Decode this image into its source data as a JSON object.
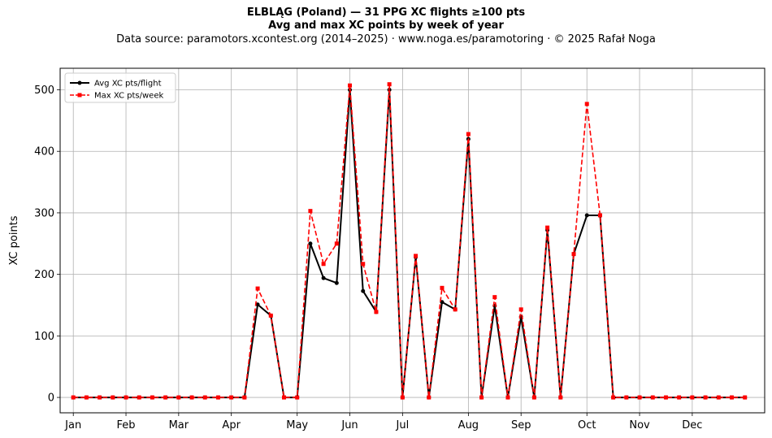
{
  "header": {
    "title": "ELBLĄG (Poland)  —  31 PPG XC flights ≥100 pts",
    "subtitle": "Avg and max XC points by week of year",
    "source": "Data source: paramotors.xcontest.org (2014–2025)  ·  www.noga.es/paramotoring  ·  © 2025 Rafał Noga"
  },
  "chart_data": {
    "type": "line",
    "ylabel": "XC points",
    "x_ticks": [
      {
        "week": 1,
        "label": "Jan"
      },
      {
        "week": 5,
        "label": "Feb"
      },
      {
        "week": 9,
        "label": "Mar"
      },
      {
        "week": 13,
        "label": "Apr"
      },
      {
        "week": 18,
        "label": "May"
      },
      {
        "week": 22,
        "label": "Jun"
      },
      {
        "week": 26,
        "label": "Jul"
      },
      {
        "week": 31,
        "label": "Aug"
      },
      {
        "week": 35,
        "label": "Sep"
      },
      {
        "week": 40,
        "label": "Oct"
      },
      {
        "week": 44,
        "label": "Nov"
      },
      {
        "week": 48,
        "label": "Dec"
      }
    ],
    "xlim": [
      0,
      53.5
    ],
    "ylim": [
      -25,
      535
    ],
    "y_ticks": [
      0,
      100,
      200,
      300,
      400,
      500
    ],
    "grid": true,
    "legend": "upper left",
    "x": [
      1,
      2,
      3,
      4,
      5,
      6,
      7,
      8,
      9,
      10,
      11,
      12,
      13,
      14,
      15,
      16,
      17,
      18,
      19,
      20,
      21,
      22,
      23,
      24,
      25,
      26,
      27,
      28,
      29,
      30,
      31,
      32,
      33,
      34,
      35,
      36,
      37,
      38,
      39,
      40,
      41,
      42,
      43,
      44,
      45,
      46,
      47,
      48,
      49,
      50,
      51,
      52
    ],
    "series": [
      {
        "name": "Avg XC pts/flight",
        "color": "#000000",
        "style": "solid-circle",
        "values": [
          0,
          0,
          0,
          0,
          0,
          0,
          0,
          0,
          0,
          0,
          0,
          0,
          0,
          0,
          151,
          133,
          0,
          0,
          250,
          194,
          186,
          500,
          173,
          139,
          500,
          0,
          228,
          0,
          155,
          143,
          420,
          0,
          149,
          0,
          131,
          0,
          272,
          0,
          233,
          296,
          296,
          0,
          0,
          0,
          0,
          0,
          0,
          0,
          0,
          0,
          0,
          0
        ]
      },
      {
        "name": "Max XC pts/week",
        "color": "#ff0000",
        "style": "dashed-square",
        "values": [
          0,
          0,
          0,
          0,
          0,
          0,
          0,
          0,
          0,
          0,
          0,
          0,
          0,
          0,
          177,
          133,
          0,
          0,
          303,
          217,
          250,
          507,
          217,
          139,
          509,
          0,
          230,
          0,
          178,
          143,
          428,
          0,
          163,
          0,
          143,
          0,
          276,
          0,
          233,
          477,
          296,
          0,
          0,
          0,
          0,
          0,
          0,
          0,
          0,
          0,
          0,
          0
        ]
      }
    ]
  }
}
